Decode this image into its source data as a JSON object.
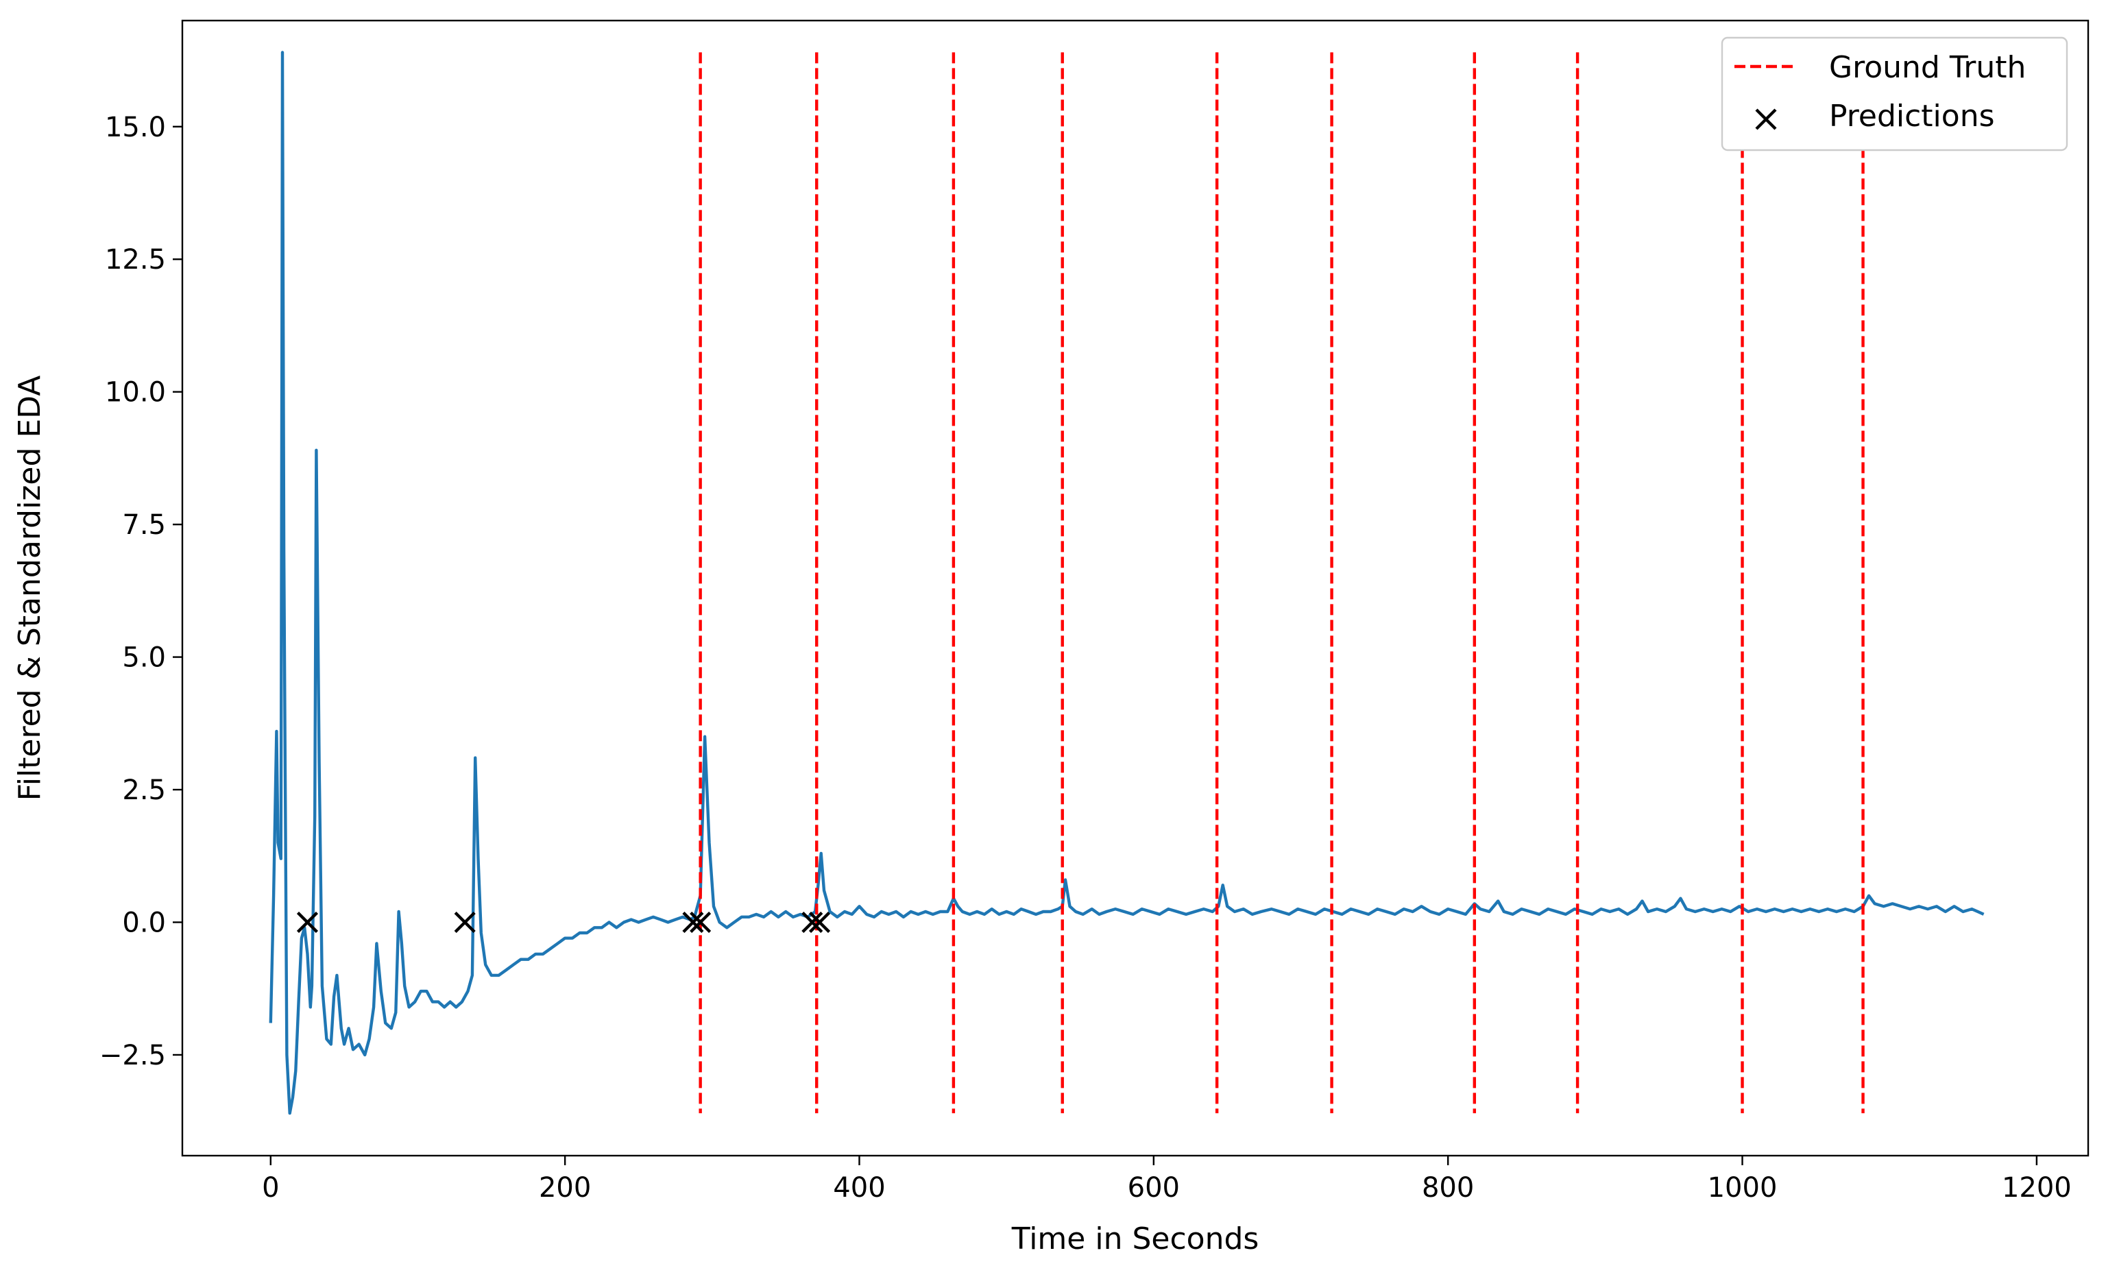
{
  "chart_data": {
    "type": "line",
    "title": "",
    "xlabel": "Time in Seconds",
    "ylabel": "Filtered & Standardized EDA",
    "xlim": [
      -60,
      1235
    ],
    "ylim": [
      -4.4,
      17.0
    ],
    "xticks": [
      0,
      200,
      400,
      600,
      800,
      1000,
      1200
    ],
    "xtick_labels": [
      "0",
      "200",
      "400",
      "600",
      "800",
      "1000",
      "1200"
    ],
    "yticks": [
      -2.5,
      0.0,
      2.5,
      5.0,
      7.5,
      10.0,
      12.5,
      15.0
    ],
    "ytick_labels": [
      "−2.5",
      "0.0",
      "2.5",
      "5.0",
      "7.5",
      "10.0",
      "12.5",
      "15.0"
    ],
    "grid": false,
    "legend": {
      "position": "top-right",
      "entries": [
        "Ground Truth",
        "Predictions"
      ]
    },
    "series": [
      {
        "name": "",
        "kind": "line",
        "color": "#1f77b4",
        "points": [
          [
            0,
            -1.9
          ],
          [
            2,
            0.5
          ],
          [
            4,
            3.6
          ],
          [
            5,
            1.5
          ],
          [
            7,
            1.2
          ],
          [
            8,
            16.4
          ],
          [
            9,
            7.0
          ],
          [
            11,
            -2.5
          ],
          [
            13,
            -3.6
          ],
          [
            15,
            -3.3
          ],
          [
            17,
            -2.8
          ],
          [
            19,
            -1.5
          ],
          [
            21,
            -0.3
          ],
          [
            23,
            -0.1
          ],
          [
            25,
            -0.6
          ],
          [
            27,
            -1.6
          ],
          [
            28,
            -1.2
          ],
          [
            30,
            2.0
          ],
          [
            31,
            8.9
          ],
          [
            33,
            3.0
          ],
          [
            35,
            -1.2
          ],
          [
            38,
            -2.2
          ],
          [
            41,
            -2.3
          ],
          [
            43,
            -1.4
          ],
          [
            45,
            -1.0
          ],
          [
            48,
            -2.0
          ],
          [
            50,
            -2.3
          ],
          [
            53,
            -2.0
          ],
          [
            56,
            -2.4
          ],
          [
            60,
            -2.3
          ],
          [
            64,
            -2.5
          ],
          [
            67,
            -2.2
          ],
          [
            70,
            -1.6
          ],
          [
            72,
            -0.4
          ],
          [
            75,
            -1.3
          ],
          [
            78,
            -1.9
          ],
          [
            82,
            -2.0
          ],
          [
            85,
            -1.7
          ],
          [
            87,
            0.2
          ],
          [
            89,
            -0.4
          ],
          [
            91,
            -1.2
          ],
          [
            94,
            -1.6
          ],
          [
            98,
            -1.5
          ],
          [
            102,
            -1.3
          ],
          [
            106,
            -1.3
          ],
          [
            110,
            -1.5
          ],
          [
            114,
            -1.5
          ],
          [
            118,
            -1.6
          ],
          [
            122,
            -1.5
          ],
          [
            126,
            -1.6
          ],
          [
            130,
            -1.5
          ],
          [
            134,
            -1.3
          ],
          [
            137,
            -1.0
          ],
          [
            139,
            3.1
          ],
          [
            141,
            1.2
          ],
          [
            143,
            -0.2
          ],
          [
            146,
            -0.8
          ],
          [
            150,
            -1.0
          ],
          [
            155,
            -1.0
          ],
          [
            160,
            -0.9
          ],
          [
            165,
            -0.8
          ],
          [
            170,
            -0.7
          ],
          [
            175,
            -0.7
          ],
          [
            180,
            -0.6
          ],
          [
            185,
            -0.6
          ],
          [
            190,
            -0.5
          ],
          [
            195,
            -0.4
          ],
          [
            200,
            -0.3
          ],
          [
            205,
            -0.3
          ],
          [
            210,
            -0.2
          ],
          [
            215,
            -0.2
          ],
          [
            220,
            -0.1
          ],
          [
            225,
            -0.1
          ],
          [
            230,
            0.0
          ],
          [
            235,
            -0.1
          ],
          [
            240,
            0.0
          ],
          [
            245,
            0.05
          ],
          [
            250,
            0.0
          ],
          [
            255,
            0.05
          ],
          [
            260,
            0.1
          ],
          [
            265,
            0.05
          ],
          [
            270,
            0.0
          ],
          [
            275,
            0.05
          ],
          [
            280,
            0.1
          ],
          [
            285,
            0.05
          ],
          [
            288,
            0.1
          ],
          [
            292,
            0.5
          ],
          [
            295,
            3.5
          ],
          [
            298,
            1.5
          ],
          [
            301,
            0.3
          ],
          [
            305,
            0.0
          ],
          [
            310,
            -0.1
          ],
          [
            315,
            0.0
          ],
          [
            320,
            0.1
          ],
          [
            325,
            0.1
          ],
          [
            330,
            0.15
          ],
          [
            335,
            0.1
          ],
          [
            340,
            0.2
          ],
          [
            345,
            0.1
          ],
          [
            350,
            0.2
          ],
          [
            355,
            0.1
          ],
          [
            360,
            0.15
          ],
          [
            365,
            0.1
          ],
          [
            370,
            0.2
          ],
          [
            372,
            0.7
          ],
          [
            374,
            1.3
          ],
          [
            376,
            0.6
          ],
          [
            380,
            0.2
          ],
          [
            385,
            0.1
          ],
          [
            390,
            0.2
          ],
          [
            395,
            0.15
          ],
          [
            400,
            0.3
          ],
          [
            405,
            0.15
          ],
          [
            410,
            0.1
          ],
          [
            415,
            0.2
          ],
          [
            420,
            0.15
          ],
          [
            425,
            0.2
          ],
          [
            430,
            0.1
          ],
          [
            435,
            0.2
          ],
          [
            440,
            0.15
          ],
          [
            445,
            0.2
          ],
          [
            450,
            0.15
          ],
          [
            455,
            0.2
          ],
          [
            460,
            0.2
          ],
          [
            464,
            0.45
          ],
          [
            467,
            0.3
          ],
          [
            470,
            0.2
          ],
          [
            475,
            0.15
          ],
          [
            480,
            0.2
          ],
          [
            485,
            0.15
          ],
          [
            490,
            0.25
          ],
          [
            495,
            0.15
          ],
          [
            500,
            0.2
          ],
          [
            505,
            0.15
          ],
          [
            510,
            0.25
          ],
          [
            515,
            0.2
          ],
          [
            520,
            0.15
          ],
          [
            525,
            0.2
          ],
          [
            530,
            0.2
          ],
          [
            535,
            0.25
          ],
          [
            538,
            0.3
          ],
          [
            540,
            0.8
          ],
          [
            543,
            0.3
          ],
          [
            547,
            0.2
          ],
          [
            552,
            0.15
          ],
          [
            558,
            0.25
          ],
          [
            563,
            0.15
          ],
          [
            568,
            0.2
          ],
          [
            574,
            0.25
          ],
          [
            580,
            0.2
          ],
          [
            586,
            0.15
          ],
          [
            592,
            0.25
          ],
          [
            598,
            0.2
          ],
          [
            604,
            0.15
          ],
          [
            610,
            0.25
          ],
          [
            616,
            0.2
          ],
          [
            622,
            0.15
          ],
          [
            628,
            0.2
          ],
          [
            634,
            0.25
          ],
          [
            640,
            0.2
          ],
          [
            644,
            0.3
          ],
          [
            647,
            0.7
          ],
          [
            650,
            0.3
          ],
          [
            655,
            0.2
          ],
          [
            661,
            0.25
          ],
          [
            667,
            0.15
          ],
          [
            673,
            0.2
          ],
          [
            680,
            0.25
          ],
          [
            686,
            0.2
          ],
          [
            692,
            0.15
          ],
          [
            698,
            0.25
          ],
          [
            704,
            0.2
          ],
          [
            710,
            0.15
          ],
          [
            716,
            0.25
          ],
          [
            722,
            0.2
          ],
          [
            728,
            0.15
          ],
          [
            734,
            0.25
          ],
          [
            740,
            0.2
          ],
          [
            746,
            0.15
          ],
          [
            752,
            0.25
          ],
          [
            758,
            0.2
          ],
          [
            764,
            0.15
          ],
          [
            770,
            0.25
          ],
          [
            776,
            0.2
          ],
          [
            782,
            0.3
          ],
          [
            788,
            0.2
          ],
          [
            794,
            0.15
          ],
          [
            800,
            0.25
          ],
          [
            806,
            0.2
          ],
          [
            812,
            0.15
          ],
          [
            818,
            0.35
          ],
          [
            822,
            0.25
          ],
          [
            828,
            0.2
          ],
          [
            834,
            0.4
          ],
          [
            838,
            0.2
          ],
          [
            844,
            0.15
          ],
          [
            850,
            0.25
          ],
          [
            856,
            0.2
          ],
          [
            862,
            0.15
          ],
          [
            868,
            0.25
          ],
          [
            874,
            0.2
          ],
          [
            880,
            0.15
          ],
          [
            886,
            0.25
          ],
          [
            892,
            0.2
          ],
          [
            898,
            0.15
          ],
          [
            904,
            0.25
          ],
          [
            910,
            0.2
          ],
          [
            916,
            0.25
          ],
          [
            922,
            0.15
          ],
          [
            928,
            0.25
          ],
          [
            932,
            0.4
          ],
          [
            936,
            0.2
          ],
          [
            942,
            0.25
          ],
          [
            948,
            0.2
          ],
          [
            954,
            0.3
          ],
          [
            958,
            0.45
          ],
          [
            962,
            0.25
          ],
          [
            968,
            0.2
          ],
          [
            974,
            0.25
          ],
          [
            980,
            0.2
          ],
          [
            986,
            0.25
          ],
          [
            992,
            0.2
          ],
          [
            998,
            0.3
          ],
          [
            1004,
            0.2
          ],
          [
            1010,
            0.25
          ],
          [
            1016,
            0.2
          ],
          [
            1022,
            0.25
          ],
          [
            1028,
            0.2
          ],
          [
            1034,
            0.25
          ],
          [
            1040,
            0.2
          ],
          [
            1046,
            0.25
          ],
          [
            1052,
            0.2
          ],
          [
            1058,
            0.25
          ],
          [
            1064,
            0.2
          ],
          [
            1070,
            0.25
          ],
          [
            1076,
            0.2
          ],
          [
            1082,
            0.3
          ],
          [
            1086,
            0.5
          ],
          [
            1090,
            0.35
          ],
          [
            1096,
            0.3
          ],
          [
            1102,
            0.35
          ],
          [
            1108,
            0.3
          ],
          [
            1114,
            0.25
          ],
          [
            1120,
            0.3
          ],
          [
            1126,
            0.25
          ],
          [
            1132,
            0.3
          ],
          [
            1138,
            0.2
          ],
          [
            1144,
            0.3
          ],
          [
            1150,
            0.2
          ],
          [
            1156,
            0.25
          ],
          [
            1160,
            0.2
          ],
          [
            1164,
            0.15
          ]
        ]
      },
      {
        "name": "Ground Truth",
        "kind": "vlines",
        "color": "#ff0000",
        "x": [
          292,
          371,
          464,
          538,
          643,
          721,
          818,
          888,
          1000,
          1082
        ],
        "y_range": [
          -3.6,
          16.4
        ]
      },
      {
        "name": "Predictions",
        "kind": "scatter",
        "color": "#000000",
        "marker": "x",
        "x": [
          25,
          132,
          287,
          292,
          368,
          373
        ],
        "y": [
          0,
          0,
          0,
          0,
          0,
          0
        ]
      }
    ]
  }
}
